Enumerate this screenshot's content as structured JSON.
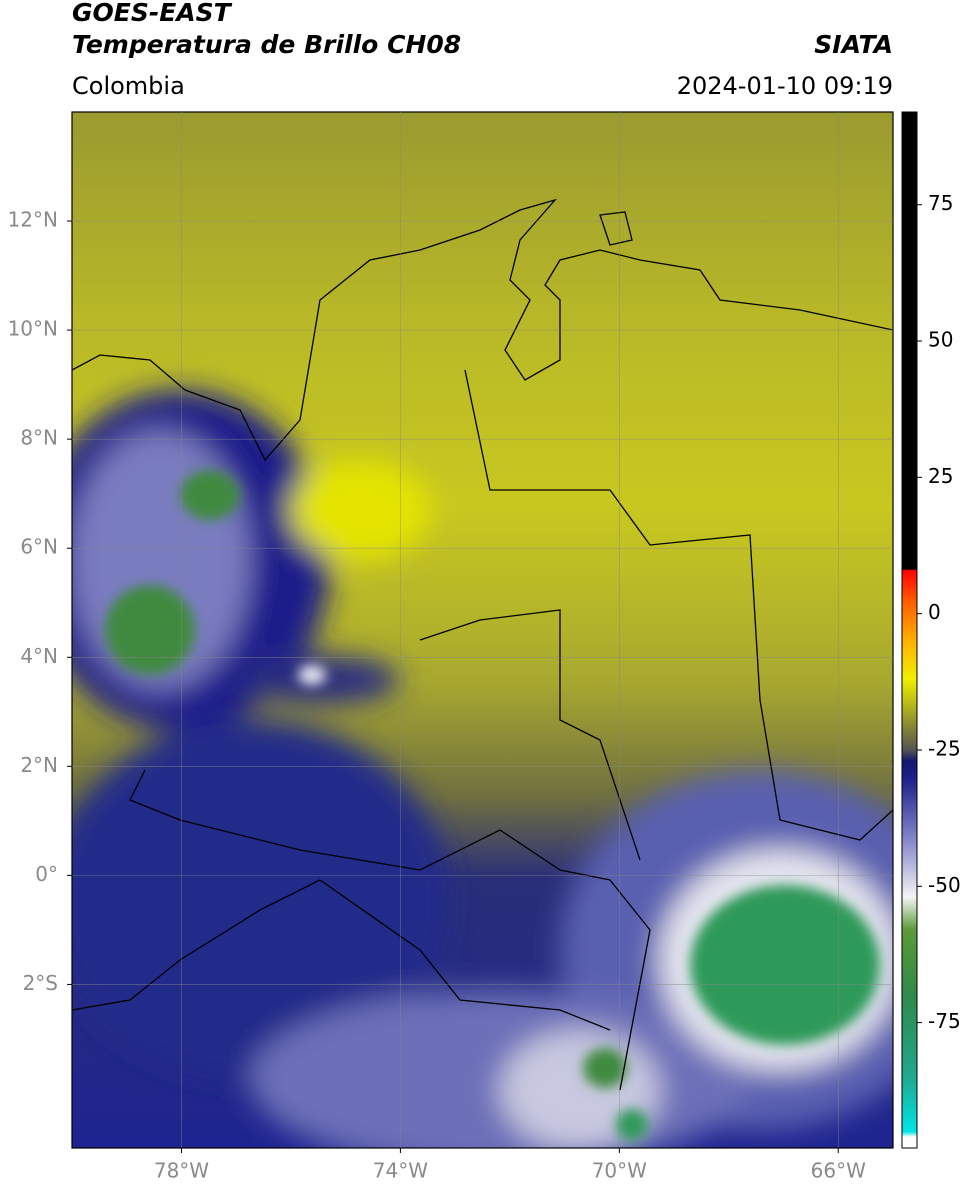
{
  "map": {
    "type": "raster-map",
    "title": "GOES-EAST",
    "subtitle": "Temperatura de Brillo CH08",
    "source": "SIATA",
    "region": "Colombia",
    "timestamp": "2024-01-10 09:19",
    "xlim": [
      -80,
      -65
    ],
    "ylim": [
      -5,
      14
    ],
    "xticks": [
      {
        "value": -78,
        "label": "78°W"
      },
      {
        "value": -74,
        "label": "74°W"
      },
      {
        "value": -70,
        "label": "70°W"
      },
      {
        "value": -66,
        "label": "66°W"
      }
    ],
    "yticks": [
      {
        "value": 12,
        "label": "12°N"
      },
      {
        "value": 10,
        "label": "10°N"
      },
      {
        "value": 8,
        "label": "8°N"
      },
      {
        "value": 6,
        "label": "6°N"
      },
      {
        "value": 4,
        "label": "4°N"
      },
      {
        "value": 2,
        "label": "2°N"
      },
      {
        "value": 0,
        "label": "0°"
      },
      {
        "value": -2,
        "label": "2°S"
      }
    ],
    "grid": true,
    "colorbar": {
      "clim": [
        -98,
        92
      ],
      "ticks": [
        75,
        50,
        25,
        0,
        -25,
        -50,
        -75
      ],
      "colormap": [
        {
          "value": -98,
          "color": "#ffffff"
        },
        {
          "value": -96,
          "color": "#ffffff"
        },
        {
          "value": -95,
          "color": "#00e5e5"
        },
        {
          "value": -85,
          "color": "#20a890"
        },
        {
          "value": -70,
          "color": "#2f8a4a"
        },
        {
          "value": -58,
          "color": "#5c9a3a"
        },
        {
          "value": -52,
          "color": "#f4f4f4"
        },
        {
          "value": -42,
          "color": "#8a8ccc"
        },
        {
          "value": -30,
          "color": "#1a1f8a"
        },
        {
          "value": -27,
          "color": "#14186e"
        },
        {
          "value": -25,
          "color": "#555555"
        },
        {
          "value": -20,
          "color": "#8f8f30"
        },
        {
          "value": -12,
          "color": "#f0f000"
        },
        {
          "value": -5,
          "color": "#ffb000"
        },
        {
          "value": 2,
          "color": "#ff6000"
        },
        {
          "value": 8,
          "color": "#ff0000"
        },
        {
          "value": 8.1,
          "color": "#000000"
        },
        {
          "value": 92,
          "color": "#000000"
        }
      ]
    }
  }
}
